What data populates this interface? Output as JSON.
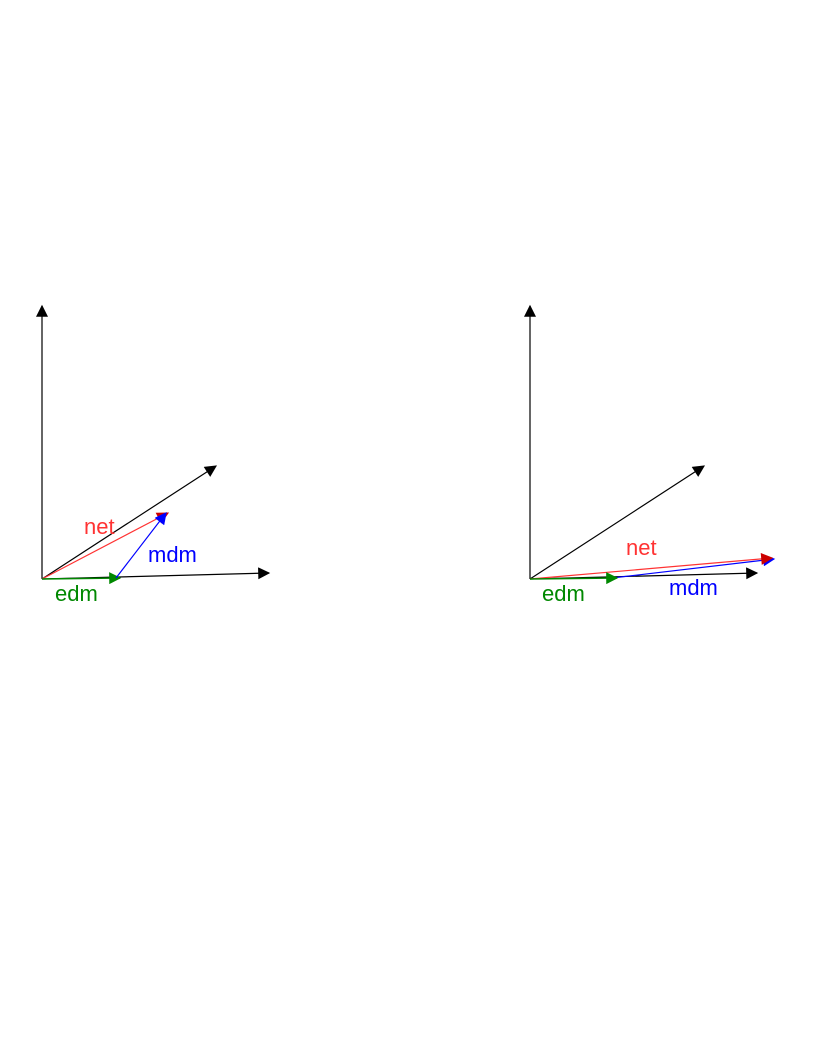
{
  "colors": {
    "axis": "#000000",
    "net": "#ff3333",
    "mdm": "#0000ff",
    "edm": "#008800"
  },
  "labels": {
    "net": "net",
    "mdm": "mdm",
    "edm": "edm"
  }
}
